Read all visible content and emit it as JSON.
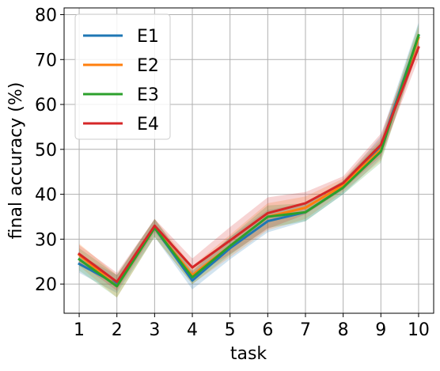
{
  "chart_data": {
    "type": "line",
    "title": "",
    "xlabel": "task",
    "ylabel": "final accuracy (%)",
    "x": [
      1,
      2,
      3,
      4,
      5,
      6,
      7,
      8,
      9,
      10
    ],
    "xlim": [
      0.6,
      10.4
    ],
    "ylim": [
      13.5,
      81.5
    ],
    "xticks": [
      "1",
      "2",
      "3",
      "4",
      "5",
      "6",
      "7",
      "8",
      "9",
      "10"
    ],
    "yticks": [
      "20",
      "30",
      "40",
      "50",
      "60",
      "70",
      "80"
    ],
    "grid": true,
    "legend_position": "top-left",
    "series": [
      {
        "name": "E1",
        "color": "#1f77b4",
        "values": [
          24.5,
          20.0,
          32.5,
          20.8,
          28.0,
          34.0,
          36.0,
          41.5,
          50.5,
          75.3
        ],
        "band": [
          2.0,
          2.0,
          2.0,
          2.0,
          2.5,
          2.5,
          2.0,
          1.5,
          2.5,
          3.0
        ]
      },
      {
        "name": "E2",
        "color": "#ff7f0e",
        "values": [
          26.5,
          19.5,
          32.5,
          22.0,
          28.5,
          35.0,
          37.0,
          42.0,
          50.0,
          74.8
        ],
        "band": [
          2.5,
          2.5,
          2.0,
          2.0,
          2.5,
          3.0,
          2.5,
          1.5,
          2.5,
          2.5
        ]
      },
      {
        "name": "E3",
        "color": "#2ca02c",
        "values": [
          25.5,
          19.5,
          32.5,
          21.5,
          28.5,
          35.0,
          36.0,
          41.5,
          49.5,
          75.4
        ],
        "band": [
          2.5,
          2.5,
          2.0,
          1.5,
          2.0,
          2.5,
          2.0,
          1.5,
          2.5,
          2.5
        ]
      },
      {
        "name": "E4",
        "color": "#d62728",
        "values": [
          26.7,
          20.5,
          33.0,
          23.7,
          29.7,
          35.8,
          38.0,
          42.5,
          51.0,
          72.7
        ],
        "band": [
          2.0,
          2.0,
          1.5,
          2.0,
          3.0,
          3.5,
          2.5,
          1.5,
          2.5,
          2.5
        ]
      }
    ]
  }
}
